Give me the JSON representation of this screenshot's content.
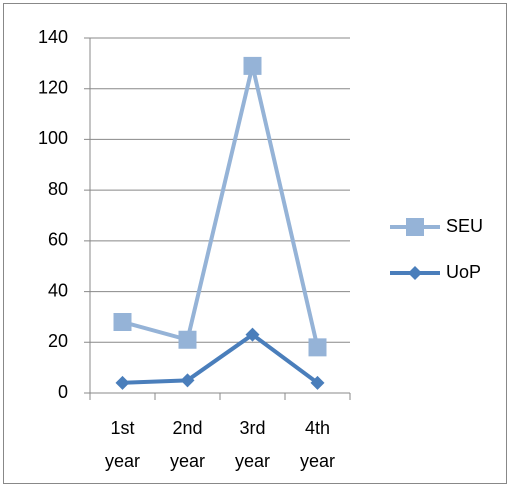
{
  "chart_data": {
    "type": "line",
    "categories": [
      "1st year",
      "2nd year",
      "3rd year",
      "4th year"
    ],
    "series": [
      {
        "name": "SEU",
        "color": "#95b3d7",
        "marker": "square",
        "values": [
          28,
          21,
          129,
          18
        ]
      },
      {
        "name": "UoP",
        "color": "#4a7ebb",
        "marker": "diamond",
        "values": [
          4,
          5,
          23,
          4
        ]
      }
    ],
    "ylim": [
      0,
      140
    ],
    "yticks": [
      0,
      20,
      40,
      60,
      80,
      100,
      120,
      140
    ],
    "grid": true,
    "legend": "right"
  }
}
